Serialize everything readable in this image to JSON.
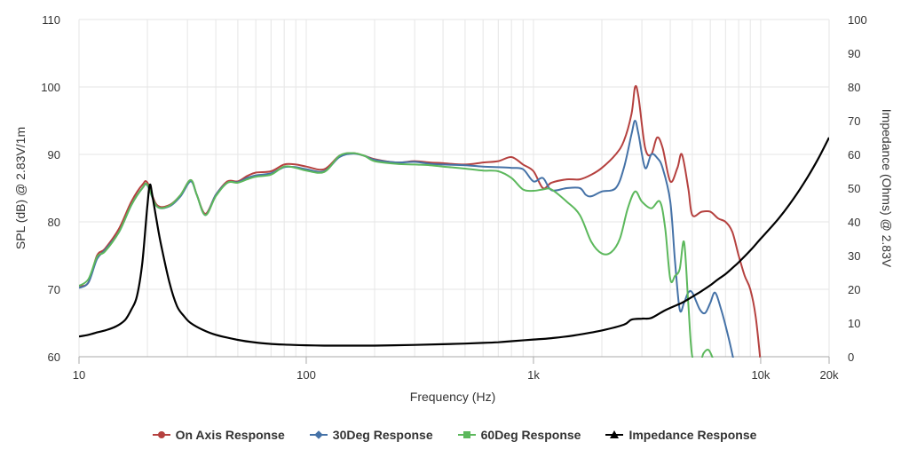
{
  "chart_data": {
    "type": "line",
    "xlabel": "Frequency (Hz)",
    "ylabel": "SPL (dB) @ 2.83V/1m",
    "y2label": "Impedance (Ohms) @ 2.83V",
    "xscale": "log",
    "xlim": [
      10,
      20000
    ],
    "ylim": [
      60,
      110
    ],
    "y2lim": [
      0,
      100
    ],
    "xticks": [
      10,
      100,
      1000,
      10000,
      20000
    ],
    "xtick_labels": [
      "10",
      "100",
      "1k",
      "10k",
      "20k"
    ],
    "yticks": [
      60,
      70,
      80,
      90,
      100,
      110
    ],
    "ytick_labels": [
      "60",
      "70",
      "80",
      "90",
      "100",
      "110"
    ],
    "y2ticks": [
      0,
      10,
      20,
      30,
      40,
      50,
      60,
      70,
      80,
      90,
      100
    ],
    "y2tick_labels": [
      "0",
      "10",
      "20",
      "30",
      "40",
      "50",
      "60",
      "70",
      "80",
      "90",
      "100"
    ],
    "grid": true,
    "legend_position": "bottom",
    "series": [
      {
        "name": "On Axis Response",
        "color": "#b5413f",
        "marker": "circle",
        "axis": "left",
        "points": [
          [
            10,
            70.5
          ],
          [
            11,
            71
          ],
          [
            12,
            75
          ],
          [
            13,
            76
          ],
          [
            15,
            79
          ],
          [
            17,
            83
          ],
          [
            19,
            85.5
          ],
          [
            20,
            85.8
          ],
          [
            22,
            82.5
          ],
          [
            25,
            82.5
          ],
          [
            28,
            84
          ],
          [
            31,
            86.2
          ],
          [
            33,
            84
          ],
          [
            36,
            81.2
          ],
          [
            40,
            84
          ],
          [
            45,
            86
          ],
          [
            50,
            86
          ],
          [
            55,
            86.8
          ],
          [
            60,
            87.3
          ],
          [
            70,
            87.5
          ],
          [
            80,
            88.5
          ],
          [
            90,
            88.5
          ],
          [
            100,
            88.2
          ],
          [
            120,
            87.8
          ],
          [
            140,
            89.8
          ],
          [
            160,
            90.2
          ],
          [
            180,
            89.8
          ],
          [
            200,
            89.3
          ],
          [
            250,
            88.8
          ],
          [
            300,
            89
          ],
          [
            350,
            88.8
          ],
          [
            400,
            88.7
          ],
          [
            500,
            88.5
          ],
          [
            600,
            88.8
          ],
          [
            700,
            89
          ],
          [
            800,
            89.6
          ],
          [
            900,
            88.5
          ],
          [
            1000,
            87.5
          ],
          [
            1100,
            85
          ],
          [
            1200,
            85.8
          ],
          [
            1400,
            86.3
          ],
          [
            1600,
            86.3
          ],
          [
            1800,
            87
          ],
          [
            2000,
            88
          ],
          [
            2300,
            90
          ],
          [
            2500,
            92
          ],
          [
            2700,
            96
          ],
          [
            2800,
            100
          ],
          [
            2900,
            98.5
          ],
          [
            3100,
            91
          ],
          [
            3300,
            90
          ],
          [
            3500,
            92.5
          ],
          [
            3700,
            91
          ],
          [
            4000,
            86
          ],
          [
            4300,
            88
          ],
          [
            4500,
            90
          ],
          [
            4800,
            85
          ],
          [
            5000,
            81
          ],
          [
            5500,
            81.5
          ],
          [
            6000,
            81.5
          ],
          [
            6500,
            80.5
          ],
          [
            7000,
            80
          ],
          [
            7500,
            78.5
          ],
          [
            8000,
            75
          ],
          [
            8500,
            72
          ],
          [
            9000,
            70
          ],
          [
            9500,
            66
          ],
          [
            10000,
            59
          ]
        ]
      },
      {
        "name": "30Deg Response",
        "color": "#4572a7",
        "marker": "diamond",
        "axis": "left",
        "points": [
          [
            10,
            70.2
          ],
          [
            11,
            71
          ],
          [
            12,
            74.5
          ],
          [
            13,
            75.8
          ],
          [
            15,
            78.5
          ],
          [
            17,
            82.5
          ],
          [
            19,
            85
          ],
          [
            20,
            85.4
          ],
          [
            22,
            82.3
          ],
          [
            25,
            82.3
          ],
          [
            28,
            83.8
          ],
          [
            31,
            86
          ],
          [
            33,
            84
          ],
          [
            36,
            81
          ],
          [
            40,
            84
          ],
          [
            45,
            85.8
          ],
          [
            50,
            85.9
          ],
          [
            55,
            86.5
          ],
          [
            60,
            86.9
          ],
          [
            70,
            87.2
          ],
          [
            80,
            88.1
          ],
          [
            90,
            88.1
          ],
          [
            100,
            87.8
          ],
          [
            120,
            87.5
          ],
          [
            140,
            89.6
          ],
          [
            160,
            90.1
          ],
          [
            180,
            89.8
          ],
          [
            200,
            89.2
          ],
          [
            250,
            88.8
          ],
          [
            300,
            88.9
          ],
          [
            350,
            88.6
          ],
          [
            400,
            88.5
          ],
          [
            500,
            88.4
          ],
          [
            600,
            88.2
          ],
          [
            700,
            88.1
          ],
          [
            800,
            88
          ],
          [
            900,
            87.8
          ],
          [
            1000,
            86
          ],
          [
            1100,
            86.5
          ],
          [
            1200,
            84.7
          ],
          [
            1400,
            85
          ],
          [
            1600,
            85
          ],
          [
            1700,
            84
          ],
          [
            1800,
            83.8
          ],
          [
            2000,
            84.5
          ],
          [
            2300,
            85
          ],
          [
            2500,
            88
          ],
          [
            2700,
            93
          ],
          [
            2800,
            95
          ],
          [
            2900,
            93
          ],
          [
            3100,
            88
          ],
          [
            3300,
            90
          ],
          [
            3500,
            89.5
          ],
          [
            3700,
            88
          ],
          [
            4000,
            83
          ],
          [
            4200,
            74
          ],
          [
            4400,
            67
          ],
          [
            4600,
            68
          ],
          [
            4800,
            69.5
          ],
          [
            5000,
            69.5
          ],
          [
            5400,
            67
          ],
          [
            5700,
            66.5
          ],
          [
            6000,
            68
          ],
          [
            6300,
            69.5
          ],
          [
            6700,
            67
          ],
          [
            7200,
            63
          ],
          [
            7600,
            59.5
          ]
        ]
      },
      {
        "name": "60Deg Response",
        "color": "#5cb85c",
        "marker": "square",
        "axis": "left",
        "points": [
          [
            10,
            70.5
          ],
          [
            11,
            71.5
          ],
          [
            12,
            74.8
          ],
          [
            13,
            75.6
          ],
          [
            15,
            78.5
          ],
          [
            17,
            82.5
          ],
          [
            19,
            85
          ],
          [
            20,
            85.5
          ],
          [
            22,
            82.3
          ],
          [
            25,
            82.4
          ],
          [
            28,
            84
          ],
          [
            31,
            86.2
          ],
          [
            33,
            84
          ],
          [
            36,
            81
          ],
          [
            40,
            83.8
          ],
          [
            45,
            85.8
          ],
          [
            50,
            85.8
          ],
          [
            55,
            86.3
          ],
          [
            60,
            86.7
          ],
          [
            70,
            87
          ],
          [
            80,
            88.2
          ],
          [
            90,
            88
          ],
          [
            100,
            87.6
          ],
          [
            120,
            87.4
          ],
          [
            140,
            89.8
          ],
          [
            160,
            90.2
          ],
          [
            180,
            89.8
          ],
          [
            200,
            89
          ],
          [
            250,
            88.6
          ],
          [
            300,
            88.5
          ],
          [
            350,
            88.4
          ],
          [
            400,
            88.2
          ],
          [
            500,
            87.9
          ],
          [
            600,
            87.6
          ],
          [
            700,
            87.5
          ],
          [
            800,
            86.5
          ],
          [
            900,
            84.8
          ],
          [
            1000,
            84.6
          ],
          [
            1100,
            84.8
          ],
          [
            1200,
            84.8
          ],
          [
            1400,
            83
          ],
          [
            1600,
            81
          ],
          [
            1800,
            77
          ],
          [
            2000,
            75.3
          ],
          [
            2200,
            75.5
          ],
          [
            2400,
            77.5
          ],
          [
            2600,
            82
          ],
          [
            2800,
            84.5
          ],
          [
            3000,
            83
          ],
          [
            3300,
            82
          ],
          [
            3600,
            83
          ],
          [
            3800,
            79
          ],
          [
            4000,
            71.5
          ],
          [
            4200,
            72
          ],
          [
            4400,
            73
          ],
          [
            4600,
            77
          ],
          [
            4800,
            68
          ],
          [
            5000,
            60
          ],
          [
            5400,
            59
          ],
          [
            5600,
            60.5
          ],
          [
            5900,
            61
          ],
          [
            6200,
            59.5
          ]
        ]
      },
      {
        "name": "Impedance Response",
        "color": "#000000",
        "marker": "triangle",
        "axis": "right",
        "points": [
          [
            10,
            6
          ],
          [
            11,
            6.5
          ],
          [
            12,
            7.2
          ],
          [
            13,
            7.8
          ],
          [
            14,
            8.5
          ],
          [
            15,
            9.5
          ],
          [
            16,
            11
          ],
          [
            17,
            14
          ],
          [
            18,
            18
          ],
          [
            19,
            28
          ],
          [
            20,
            45
          ],
          [
            20.5,
            51
          ],
          [
            21,
            48
          ],
          [
            22,
            40
          ],
          [
            23,
            33
          ],
          [
            25,
            22
          ],
          [
            27,
            15
          ],
          [
            29,
            12
          ],
          [
            31,
            10
          ],
          [
            35,
            8
          ],
          [
            40,
            6.5
          ],
          [
            50,
            5
          ],
          [
            60,
            4.2
          ],
          [
            70,
            3.8
          ],
          [
            80,
            3.6
          ],
          [
            100,
            3.4
          ],
          [
            120,
            3.3
          ],
          [
            150,
            3.3
          ],
          [
            200,
            3.3
          ],
          [
            300,
            3.5
          ],
          [
            400,
            3.7
          ],
          [
            500,
            3.9
          ],
          [
            600,
            4.1
          ],
          [
            700,
            4.3
          ],
          [
            800,
            4.6
          ],
          [
            1000,
            5.1
          ],
          [
            1200,
            5.5
          ],
          [
            1500,
            6.3
          ],
          [
            2000,
            7.8
          ],
          [
            2500,
            9.5
          ],
          [
            2700,
            11
          ],
          [
            3000,
            11.3
          ],
          [
            3300,
            11.5
          ],
          [
            3800,
            13.8
          ],
          [
            4500,
            16
          ],
          [
            5000,
            17.8
          ],
          [
            5500,
            19.5
          ],
          [
            6000,
            21.2
          ],
          [
            6500,
            23
          ],
          [
            7000,
            24.5
          ],
          [
            7500,
            26.3
          ],
          [
            8000,
            28
          ],
          [
            9000,
            31.5
          ],
          [
            10000,
            35
          ],
          [
            12000,
            41
          ],
          [
            14000,
            47
          ],
          [
            16000,
            53
          ],
          [
            18000,
            59
          ],
          [
            20000,
            65
          ]
        ]
      }
    ]
  }
}
